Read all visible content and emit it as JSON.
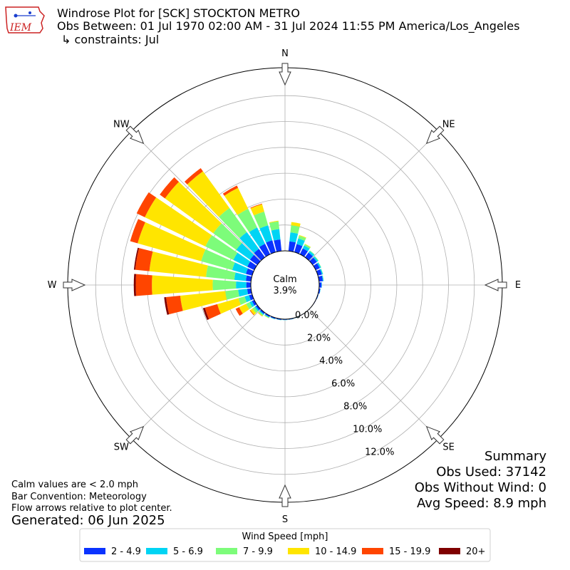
{
  "header": {
    "title": "Windrose Plot for [SCK] STOCKTON METRO",
    "subtitle": "Obs Between: 01 Jul 1970 02:00 AM - 31 Jul 2024 11:55 PM America/Los_Angeles",
    "constraints": "↳ constraints: Jul"
  },
  "logo": {
    "text": "IEM",
    "color": "#cc2222",
    "accent": "#1a3fcf"
  },
  "calm": {
    "label": "Calm",
    "value": "3.9%"
  },
  "summary": {
    "title": "Summary",
    "obs_used": "Obs Used: 37142",
    "obs_without_wind": "Obs Without Wind: 0",
    "avg_speed": "Avg Speed: 8.9 mph"
  },
  "notes": {
    "calm_note": "Calm values are < 2.0 mph",
    "bar_convention": "Bar Convention: Meteorology",
    "flow_arrows": "Flow arrows relative to plot center.",
    "generated": "Generated: 06 Jun 2025"
  },
  "chart_data": {
    "type": "windrose",
    "calm_percent": 3.9,
    "r_ticks": [
      "0.0%",
      "2.0%",
      "4.0%",
      "6.0%",
      "8.0%",
      "10.0%",
      "12.0%"
    ],
    "directions": [
      "N",
      "NE",
      "E",
      "SE",
      "S",
      "SW",
      "W",
      "NW"
    ],
    "legend_title": "Wind Speed [mph]",
    "bins": [
      {
        "label": "2 - 4.9",
        "color": "#0a33ff"
      },
      {
        "label": "5 - 6.9",
        "color": "#00d4f4"
      },
      {
        "label": "7 - 9.9",
        "color": "#7dfc7a"
      },
      {
        "label": "10 - 14.9",
        "color": "#ffe500"
      },
      {
        "label": "15 - 19.9",
        "color": "#ff4500"
      },
      {
        "label": "20+",
        "color": "#7f0000"
      }
    ],
    "sectors": [
      {
        "deg": 0,
        "values": [
          0.01,
          0.0,
          0.0,
          0.0,
          0.0,
          0.0
        ]
      },
      {
        "deg": 10,
        "values": [
          0.75,
          0.7,
          0.55,
          0.25,
          0.0,
          0.0
        ]
      },
      {
        "deg": 20,
        "values": [
          0.65,
          0.45,
          0.22,
          0.05,
          0.0,
          0.0
        ]
      },
      {
        "deg": 30,
        "values": [
          0.5,
          0.25,
          0.12,
          0.03,
          0.0,
          0.0
        ]
      },
      {
        "deg": 40,
        "values": [
          0.45,
          0.15,
          0.05,
          0.0,
          0.0,
          0.0
        ]
      },
      {
        "deg": 50,
        "values": [
          0.4,
          0.12,
          0.05,
          0.0,
          0.0,
          0.0
        ]
      },
      {
        "deg": 60,
        "values": [
          0.35,
          0.1,
          0.03,
          0.0,
          0.0,
          0.0
        ]
      },
      {
        "deg": 70,
        "values": [
          0.32,
          0.08,
          0.02,
          0.0,
          0.0,
          0.0
        ]
      },
      {
        "deg": 80,
        "values": [
          0.3,
          0.05,
          0.02,
          0.0,
          0.0,
          0.0
        ]
      },
      {
        "deg": 90,
        "values": [
          0.18,
          0.03,
          0.0,
          0.0,
          0.0,
          0.0
        ]
      },
      {
        "deg": 100,
        "values": [
          0.1,
          0.02,
          0.0,
          0.0,
          0.0,
          0.0
        ]
      },
      {
        "deg": 110,
        "values": [
          0.05,
          0.01,
          0.0,
          0.0,
          0.0,
          0.0
        ]
      },
      {
        "deg": 120,
        "values": [
          0.03,
          0.0,
          0.0,
          0.0,
          0.0,
          0.0
        ]
      },
      {
        "deg": 130,
        "values": [
          0.02,
          0.0,
          0.0,
          0.0,
          0.0,
          0.0
        ]
      },
      {
        "deg": 140,
        "values": [
          0.02,
          0.0,
          0.0,
          0.0,
          0.0,
          0.0
        ]
      },
      {
        "deg": 150,
        "values": [
          0.02,
          0.0,
          0.0,
          0.0,
          0.0,
          0.0
        ]
      },
      {
        "deg": 160,
        "values": [
          0.03,
          0.01,
          0.0,
          0.0,
          0.0,
          0.0
        ]
      },
      {
        "deg": 170,
        "values": [
          0.05,
          0.01,
          0.0,
          0.0,
          0.0,
          0.0
        ]
      },
      {
        "deg": 180,
        "values": [
          0.05,
          0.02,
          0.0,
          0.0,
          0.0,
          0.0
        ]
      },
      {
        "deg": 190,
        "values": [
          0.07,
          0.02,
          0.01,
          0.0,
          0.0,
          0.0
        ]
      },
      {
        "deg": 200,
        "values": [
          0.08,
          0.03,
          0.01,
          0.0,
          0.0,
          0.0
        ]
      },
      {
        "deg": 210,
        "values": [
          0.1,
          0.05,
          0.05,
          0.02,
          0.0,
          0.0
        ]
      },
      {
        "deg": 220,
        "values": [
          0.12,
          0.08,
          0.1,
          0.05,
          0.01,
          0.0
        ]
      },
      {
        "deg": 230,
        "values": [
          0.15,
          0.12,
          0.2,
          0.2,
          0.05,
          0.0
        ]
      },
      {
        "deg": 240,
        "values": [
          0.2,
          0.2,
          0.3,
          0.6,
          0.3,
          0.0
        ]
      },
      {
        "deg": 250,
        "values": [
          0.25,
          0.35,
          0.5,
          1.7,
          1.0,
          0.15
        ]
      },
      {
        "deg": 260,
        "values": [
          0.3,
          0.7,
          1.0,
          3.5,
          1.1,
          0.15
        ]
      },
      {
        "deg": 270,
        "values": [
          0.35,
          0.8,
          1.8,
          4.7,
          1.25,
          0.15
        ]
      },
      {
        "deg": 280,
        "values": [
          0.4,
          0.9,
          2.2,
          4.4,
          1.1,
          0.1
        ]
      },
      {
        "deg": 290,
        "values": [
          0.5,
          1.1,
          2.5,
          5.1,
          0.6,
          0.0
        ]
      },
      {
        "deg": 300,
        "values": [
          0.6,
          1.2,
          2.4,
          5.2,
          0.7,
          0.0
        ]
      },
      {
        "deg": 310,
        "values": [
          0.7,
          1.3,
          2.2,
          4.6,
          0.5,
          0.0
        ]
      },
      {
        "deg": 320,
        "values": [
          0.8,
          1.6,
          2.3,
          3.5,
          0.3,
          0.0
        ]
      },
      {
        "deg": 330,
        "values": [
          0.9,
          1.4,
          1.6,
          1.8,
          0.2,
          0.0
        ]
      },
      {
        "deg": 340,
        "values": [
          0.95,
          1.2,
          1.1,
          0.6,
          0.05,
          0.0
        ]
      },
      {
        "deg": 350,
        "values": [
          0.9,
          0.8,
          0.6,
          0.05,
          0.0,
          0.0
        ]
      }
    ]
  }
}
